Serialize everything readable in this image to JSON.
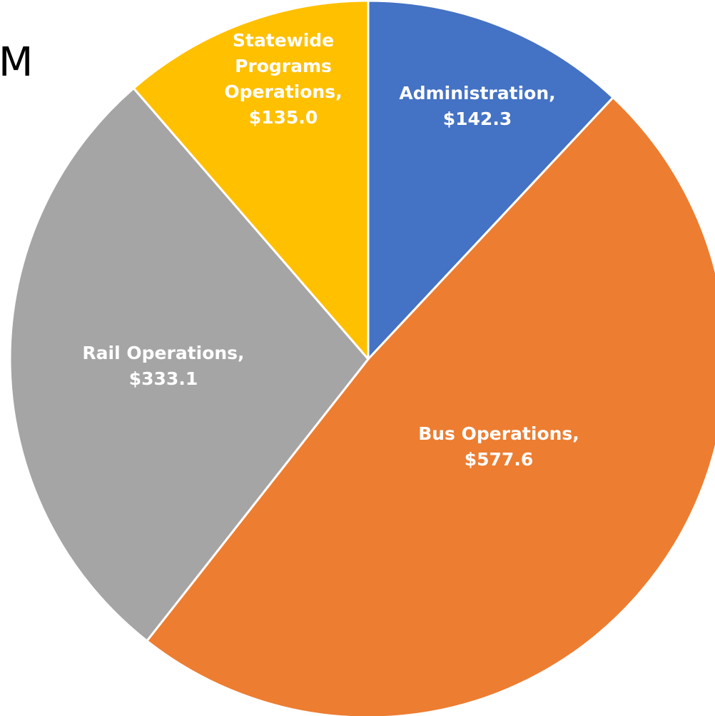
{
  "page": {
    "corner_text": "M"
  },
  "chart_data": {
    "type": "pie",
    "title": "",
    "start_angle_deg": 0,
    "direction": "clockwise",
    "label_color": "#ffffff",
    "slice_border_color": "#ffffff",
    "slices": [
      {
        "category": "Administration",
        "value_label": "$142.3",
        "value": 142.3,
        "color": "#4472C4",
        "label_lines": [
          "Administration,",
          "$142.3"
        ]
      },
      {
        "category": "Bus Operations",
        "value_label": "$577.6",
        "value": 577.6,
        "color": "#ED7D31",
        "label_lines": [
          "Bus Operations,",
          "$577.6"
        ]
      },
      {
        "category": "Rail Operations",
        "value_label": "$333.1",
        "value": 333.1,
        "color": "#A5A5A5",
        "label_lines": [
          "Rail Operations,",
          "$333.1"
        ]
      },
      {
        "category": "Statewide Programs Operations",
        "value_label": "$135.0",
        "value": 135.0,
        "color": "#FFC000",
        "label_lines": [
          "Statewide",
          "Programs",
          "Operations,",
          "$135.0"
        ]
      }
    ]
  }
}
